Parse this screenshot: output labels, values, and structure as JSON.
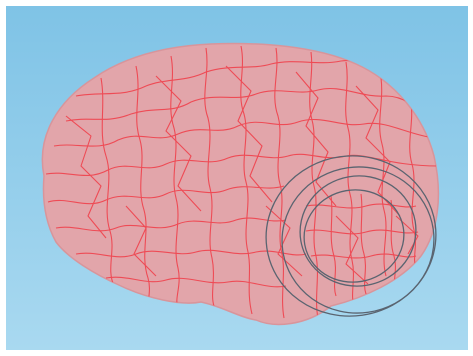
{
  "scene": {
    "background_top": "#7fc3e6",
    "background_bottom": "#a9d9f0",
    "brain_fill": "#e2a5aa",
    "brain_edge": "#d8959b",
    "parcel_line": "#ee4b55",
    "ring_color": "#5a6470"
  },
  "icons": [
    "brain-surface-icon",
    "coil-ring-icon"
  ]
}
